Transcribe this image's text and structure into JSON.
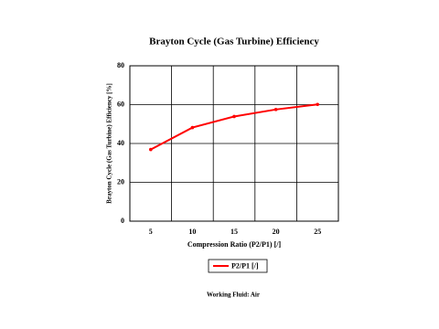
{
  "chart_data": {
    "type": "line",
    "title": "Brayton Cycle (Gas Turbine) Efficiency",
    "x_label": "Compression Ratio (P2/P1) [/]",
    "y_label": "Brayton Cycle (Gas Turbine) Efficiency [%]",
    "categories": [
      "5",
      "10",
      "15",
      "20",
      "25"
    ],
    "series": [
      {
        "name": "P2/P1 [/]",
        "color": "#ff0000",
        "values": [
          36.9,
          48.2,
          53.9,
          57.5,
          60.1
        ]
      }
    ],
    "ylim": [
      0,
      80
    ],
    "yticks": [
      0,
      20,
      40,
      60,
      80
    ],
    "grid": true,
    "legend": "bottom",
    "footnote": "Working Fluid:  Air"
  }
}
